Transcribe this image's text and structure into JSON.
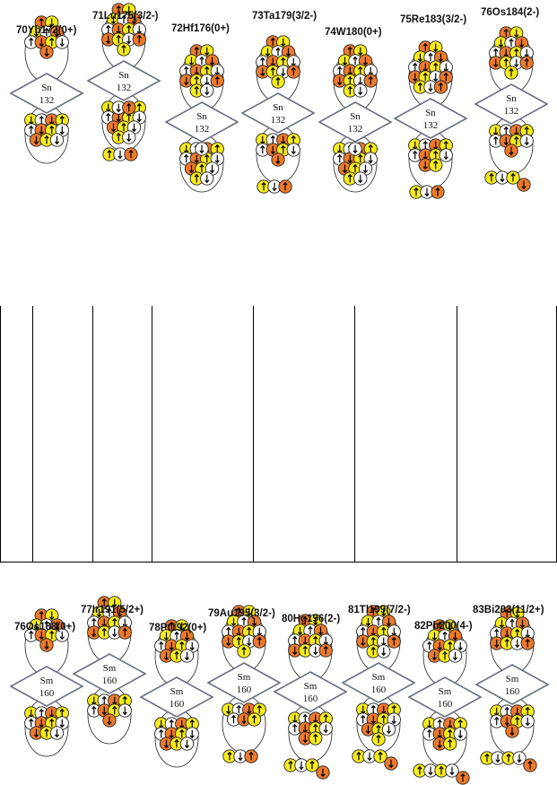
{
  "top_row": {
    "core": {
      "element": "Sn",
      "mass": "132"
    },
    "nuclei": [
      {
        "label": "70Yb172(0+)"
      },
      {
        "label": "71Lu175(3/2-)"
      },
      {
        "label": "72Hf176(0+)"
      },
      {
        "label": "73Ta179(3/2-)"
      },
      {
        "label": "74W180(0+)"
      },
      {
        "label": "75Re183(3/2-)"
      },
      {
        "label": "76Os184(2-)"
      }
    ]
  },
  "bottom_row": {
    "core": {
      "element": "Sm",
      "mass": "160"
    },
    "nuclei": [
      {
        "label": "76Os188(0+)"
      },
      {
        "label": "77Ir191(5/2+)"
      },
      {
        "label": "78Pt192(0+)"
      },
      {
        "label": "79Au195(3/2-)"
      },
      {
        "label": "80Hg196(2-)"
      },
      {
        "label": "81Tl199(7/2-)"
      },
      {
        "label": "82Pb200(4-)"
      },
      {
        "label": "83Bi203(11/2+)"
      }
    ]
  },
  "colors": {
    "proton": "#f7ec1d",
    "neutron": "#ec7a2c",
    "unfilled": "#ffffff",
    "diamond_stroke": "#6a6f7f",
    "outline": "#222222"
  }
}
